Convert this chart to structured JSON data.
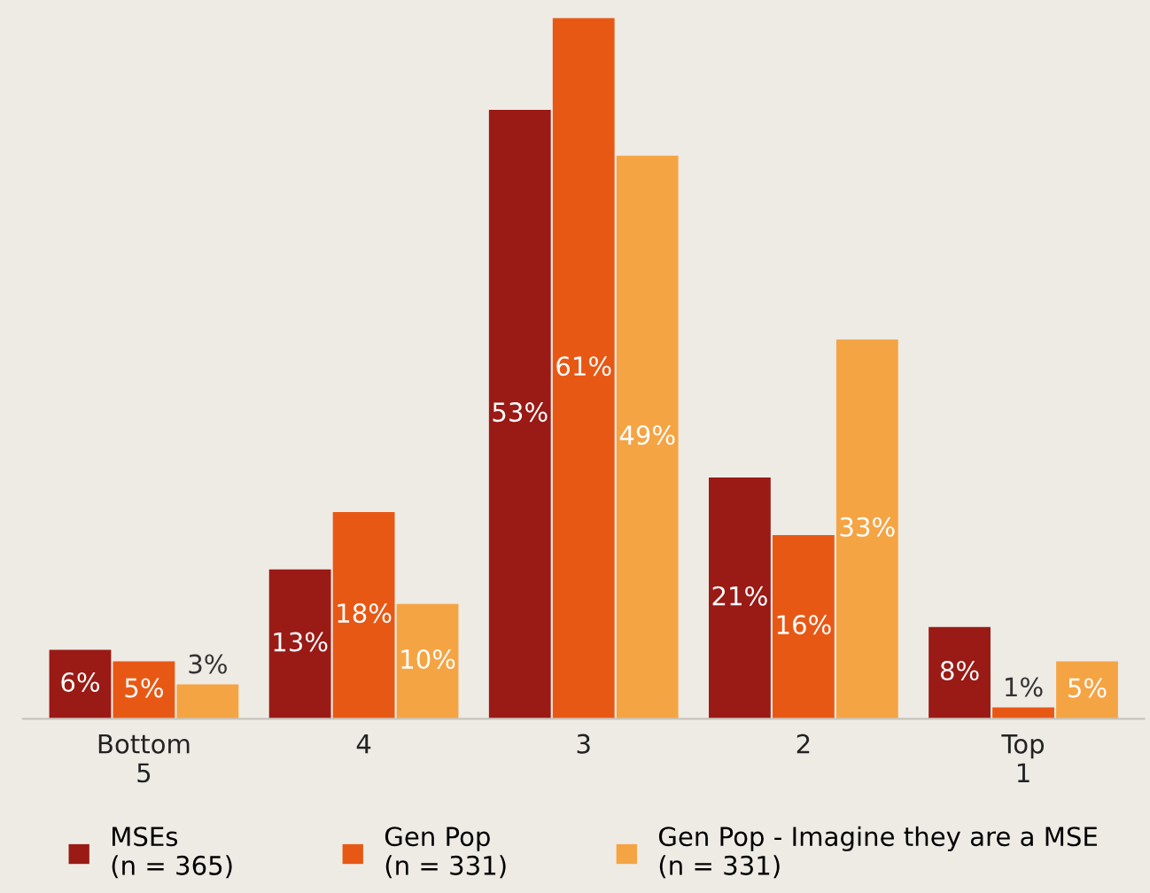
{
  "chart_data": {
    "type": "bar",
    "categories": [
      "Bottom\n5",
      "4",
      "3",
      "2",
      "Top\n1"
    ],
    "series": [
      {
        "name": "MSEs\n(n = 365)",
        "color": "#9a1a15",
        "values": [
          6,
          13,
          53,
          21,
          8
        ],
        "value_labels": [
          "6%",
          "13%",
          "53%",
          "21%",
          "8%"
        ]
      },
      {
        "name": "Gen Pop\n(n = 331)",
        "color": "#e85815",
        "values": [
          5,
          18,
          61,
          16,
          1
        ],
        "value_labels": [
          "5%",
          "18%",
          "61%",
          "16%",
          "1%"
        ]
      },
      {
        "name": "Gen Pop - Imagine they are a MSE\n(n = 331)",
        "color": "#f5a444",
        "values": [
          3,
          10,
          49,
          33,
          5
        ],
        "value_labels": [
          "3%",
          "10%",
          "49%",
          "33%",
          "5%"
        ]
      }
    ],
    "legend": "bottom",
    "grid": false
  }
}
